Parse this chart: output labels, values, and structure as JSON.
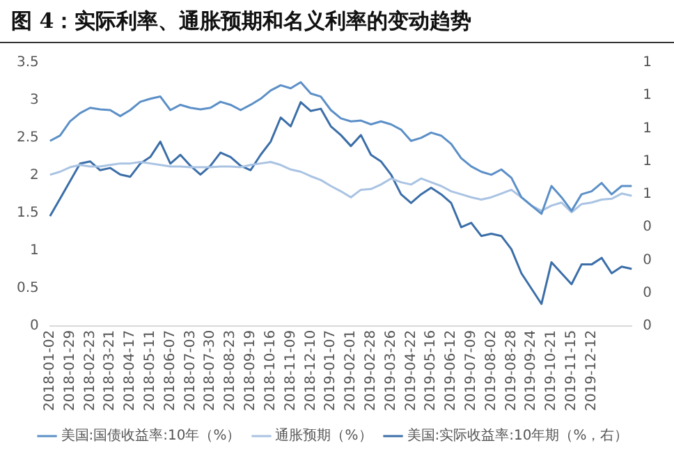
{
  "chart_data": {
    "type": "line",
    "title": "图 4：实际利率、通胀预期和名义利率的变动趋势",
    "categories": [
      "2018-01-02",
      null,
      "2018-01-29",
      null,
      "2018-02-23",
      null,
      "2018-03-21",
      null,
      "2018-04-17",
      null,
      "2018-05-11",
      null,
      "2018-06-07",
      null,
      "2018-07-03",
      null,
      "2018-07-30",
      null,
      "2018-08-23",
      null,
      "2018-09-19",
      null,
      "2018-10-16",
      null,
      "2018-11-09",
      null,
      "2018-12-10",
      null,
      "2019-01-07",
      null,
      "2019-02-01",
      null,
      "2019-02-28",
      null,
      "2019-03-26",
      null,
      "2019-04-22",
      null,
      "2019-05-16",
      null,
      "2019-06-12",
      null,
      "2019-07-09",
      null,
      "2019-08-02",
      null,
      "2019-08-28",
      null,
      "2019-09-24",
      null,
      "2019-10-21",
      null,
      "2019-11-15",
      null,
      "2019-12-12",
      null,
      null,
      null,
      null
    ],
    "series": [
      {
        "name": "美国:国债收益率:10年（%）",
        "color": "#5b8fc7",
        "values": [
          2.46,
          2.53,
          2.72,
          2.83,
          2.9,
          2.88,
          2.87,
          2.79,
          2.87,
          2.98,
          3.02,
          3.05,
          2.87,
          2.94,
          2.9,
          2.88,
          2.9,
          2.98,
          2.94,
          2.87,
          2.94,
          3.02,
          3.13,
          3.2,
          3.16,
          3.24,
          3.09,
          3.05,
          2.87,
          2.76,
          2.72,
          2.73,
          2.68,
          2.72,
          2.68,
          2.61,
          2.46,
          2.5,
          2.57,
          2.53,
          2.42,
          2.23,
          2.12,
          2.05,
          2.01,
          2.08,
          1.97,
          1.71,
          1.6,
          1.49,
          1.86,
          1.71,
          1.53,
          1.75,
          1.79,
          1.9,
          1.75,
          1.86,
          1.86
        ]
      },
      {
        "name": "通胀预期（%）",
        "color": "#a9c3e3",
        "values": [
          2.01,
          2.05,
          2.11,
          2.14,
          2.12,
          2.12,
          2.14,
          2.16,
          2.16,
          2.18,
          2.16,
          2.14,
          2.12,
          2.12,
          2.11,
          2.11,
          2.11,
          2.12,
          2.12,
          2.11,
          2.14,
          2.16,
          2.18,
          2.14,
          2.08,
          2.05,
          1.99,
          1.94,
          1.86,
          1.79,
          1.71,
          1.81,
          1.82,
          1.88,
          1.96,
          1.91,
          1.88,
          1.96,
          1.91,
          1.86,
          1.79,
          1.75,
          1.71,
          1.68,
          1.71,
          1.76,
          1.81,
          1.71,
          1.6,
          1.53,
          1.6,
          1.64,
          1.51,
          1.62,
          1.64,
          1.68,
          1.69,
          1.76,
          1.73
        ]
      },
      {
        "name": "美国:实际收益率:10年期（%，右）",
        "color": "#3b6ea8",
        "axis": "y2",
        "values": [
          0.5,
          0.58,
          0.66,
          0.74,
          0.75,
          0.71,
          0.72,
          0.69,
          0.68,
          0.74,
          0.77,
          0.84,
          0.74,
          0.78,
          0.73,
          0.69,
          0.73,
          0.79,
          0.77,
          0.73,
          0.71,
          0.78,
          0.84,
          0.95,
          0.91,
          1.02,
          0.98,
          0.99,
          0.91,
          0.87,
          0.82,
          0.87,
          0.78,
          0.75,
          0.69,
          0.6,
          0.56,
          0.6,
          0.63,
          0.6,
          0.56,
          0.45,
          0.47,
          0.41,
          0.42,
          0.41,
          0.35,
          0.24,
          0.17,
          0.1,
          0.29,
          0.24,
          0.19,
          0.28,
          0.28,
          0.31,
          0.24,
          0.27,
          0.26
        ]
      }
    ],
    "ylim": [
      0,
      3.5
    ],
    "yticks": [
      0,
      0.5,
      1,
      1.5,
      2,
      2.5,
      3,
      3.5
    ],
    "y2lim": [
      0,
      1.2
    ],
    "y2ticks": [
      {
        "value": 0,
        "label": "0"
      },
      {
        "value": 0.15,
        "label": "0"
      },
      {
        "value": 0.3,
        "label": "0"
      },
      {
        "value": 0.45,
        "label": "0"
      },
      {
        "value": 0.6,
        "label": "1"
      },
      {
        "value": 0.75,
        "label": "1"
      },
      {
        "value": 0.9,
        "label": "1"
      },
      {
        "value": 1.05,
        "label": "1"
      },
      {
        "value": 1.2,
        "label": "1"
      }
    ],
    "grid": false,
    "legend": "bottom",
    "marker": "none",
    "line_style": "solid"
  }
}
